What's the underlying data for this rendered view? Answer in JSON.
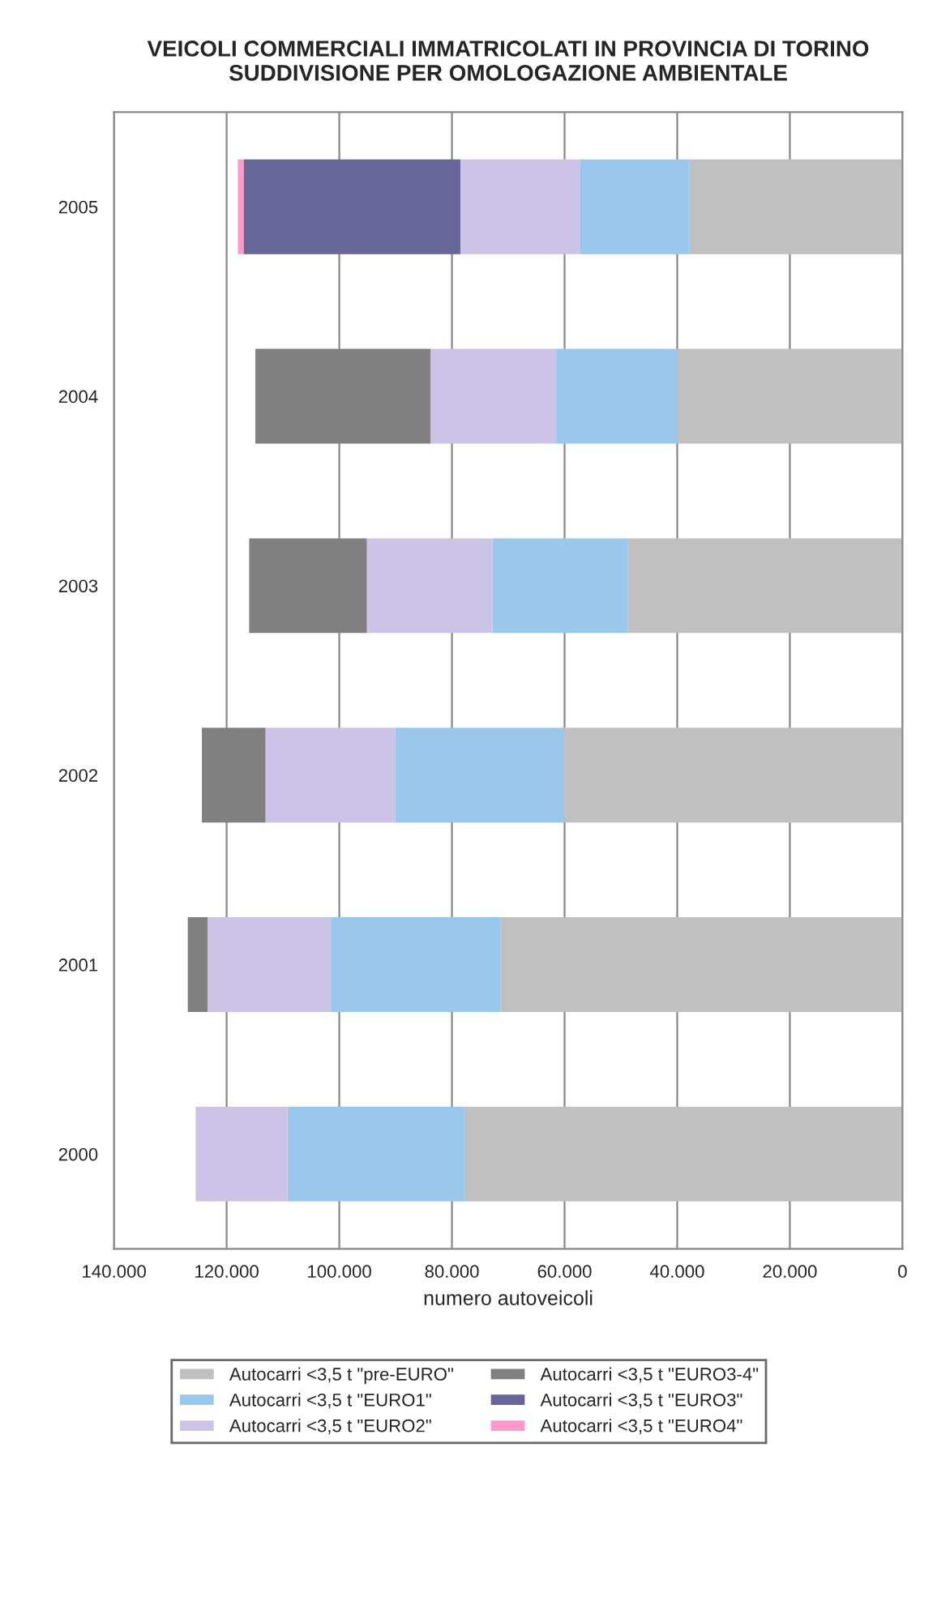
{
  "chart_data": {
    "type": "bar",
    "orientation": "horizontal",
    "stacked": true,
    "title": "VEICOLI COMMERCIALI IMMATRICOLATI IN PROVINCIA DI TORINO\nSUDDIVISIONE PER OMOLOGAZIONE AMBIENTALE",
    "xlabel": "numero autoveicoli",
    "categories": [
      "2005",
      "2004",
      "2003",
      "2002",
      "2001",
      "2000"
    ],
    "series": [
      {
        "name": "Autocarri <3,5 t \"pre-EURO\"",
        "color": "#c0c0c0",
        "values": [
          37800,
          39900,
          48800,
          60100,
          71400,
          77800
        ]
      },
      {
        "name": "Autocarri <3,5 t \"EURO1\"",
        "color": "#99c8ec",
        "values": [
          19500,
          21600,
          24000,
          30000,
          30100,
          31400
        ]
      },
      {
        "name": "Autocarri <3,5 t \"EURO2\"",
        "color": "#ccc4e6",
        "values": [
          21200,
          22300,
          22300,
          23000,
          21900,
          16300
        ]
      },
      {
        "name": "Autocarri <3,5 t \"EURO3-4\"",
        "color": "#808080",
        "values": [
          null,
          31100,
          20900,
          11300,
          3500,
          null
        ]
      },
      {
        "name": "Autocarri <3,5 t \"EURO3\"",
        "color": "#666699",
        "values": [
          38500,
          null,
          null,
          null,
          null,
          null
        ]
      },
      {
        "name": "Autocarri <3,5 t \"EURO4\"",
        "color": "#ff99cc",
        "values": [
          1000,
          null,
          null,
          null,
          null,
          null
        ]
      }
    ],
    "xlim": [
      140000,
      0
    ],
    "xticks": [
      {
        "value": 140000,
        "label": "140.000"
      },
      {
        "value": 120000,
        "label": "120.000"
      },
      {
        "value": 100000,
        "label": "100.000"
      },
      {
        "value": 80000,
        "label": "80.000"
      },
      {
        "value": 60000,
        "label": "60.000"
      },
      {
        "value": 40000,
        "label": "40.000"
      },
      {
        "value": 20000,
        "label": "20.000"
      },
      0
    ],
    "grid": "x",
    "legend": "bottom"
  }
}
